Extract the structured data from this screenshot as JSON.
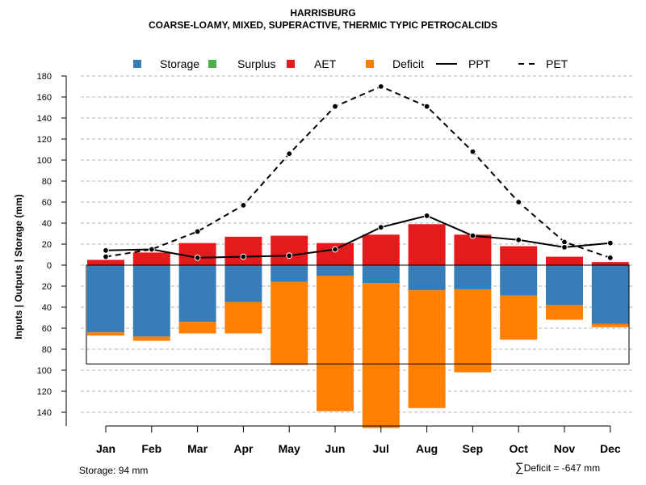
{
  "chart_data": {
    "type": "bar",
    "title": "HARRISBURG",
    "subtitle": "COARSE-LOAMY, MIXED, SUPERACTIVE, THERMIC TYPIC PETROCALCIDS",
    "ylabel": "Inputs | Outputs | Storage    (mm)",
    "categories": [
      "Jan",
      "Feb",
      "Mar",
      "Apr",
      "May",
      "Jun",
      "Jul",
      "Aug",
      "Sep",
      "Oct",
      "Nov",
      "Dec"
    ],
    "ylim": [
      -150,
      180
    ],
    "yticks": [
      180,
      160,
      140,
      120,
      100,
      80,
      60,
      40,
      20,
      0,
      -20,
      -40,
      -60,
      -80,
      -100,
      -120,
      -140
    ],
    "ytick_labels": [
      "180",
      "160",
      "140",
      "120",
      "100",
      "80",
      "60",
      "40",
      "20",
      "0",
      "20",
      "40",
      "60",
      "80",
      "100",
      "120",
      "140"
    ],
    "legend": [
      {
        "label": "Storage",
        "kind": "box",
        "color": "#377EB8"
      },
      {
        "label": "Surplus",
        "kind": "box",
        "color": "#4DAF4A"
      },
      {
        "label": "AET",
        "kind": "box",
        "color": "#E41A1C"
      },
      {
        "label": "Deficit",
        "kind": "box",
        "color": "#FF7F00"
      },
      {
        "label": "PPT",
        "kind": "solid",
        "color": "#000000"
      },
      {
        "label": "PET",
        "kind": "dashed",
        "color": "#000000"
      }
    ],
    "series": [
      {
        "name": "AET",
        "color": "#E41A1C",
        "values": [
          5,
          12,
          21,
          27,
          28,
          21,
          29,
          39,
          29,
          18,
          8,
          3
        ]
      },
      {
        "name": "Storage",
        "color": "#377EB8",
        "values": [
          -64,
          -68,
          -54,
          -35,
          -16,
          -10,
          -17,
          -24,
          -23,
          -29,
          -38,
          -56
        ]
      },
      {
        "name": "Deficit",
        "color": "#FF7F00",
        "values": [
          -3,
          -4,
          -11,
          -30,
          -79,
          -129,
          -138,
          -112,
          -79,
          -42,
          -14,
          -3
        ]
      },
      {
        "name": "PPT",
        "color": "#000000",
        "values": [
          14,
          15,
          7,
          8,
          9,
          15,
          36,
          47,
          28,
          24,
          17,
          21
        ]
      },
      {
        "name": "PET",
        "color": "#000000",
        "values": [
          8,
          15,
          32,
          57,
          106,
          151,
          170,
          151,
          108,
          60,
          22,
          7
        ]
      }
    ],
    "storage_capacity": 94
  },
  "footer": {
    "storage_note": "Storage: 94 mm",
    "deficit_symbol": "∑",
    "deficit_note": "Deficit = -647 mm"
  }
}
